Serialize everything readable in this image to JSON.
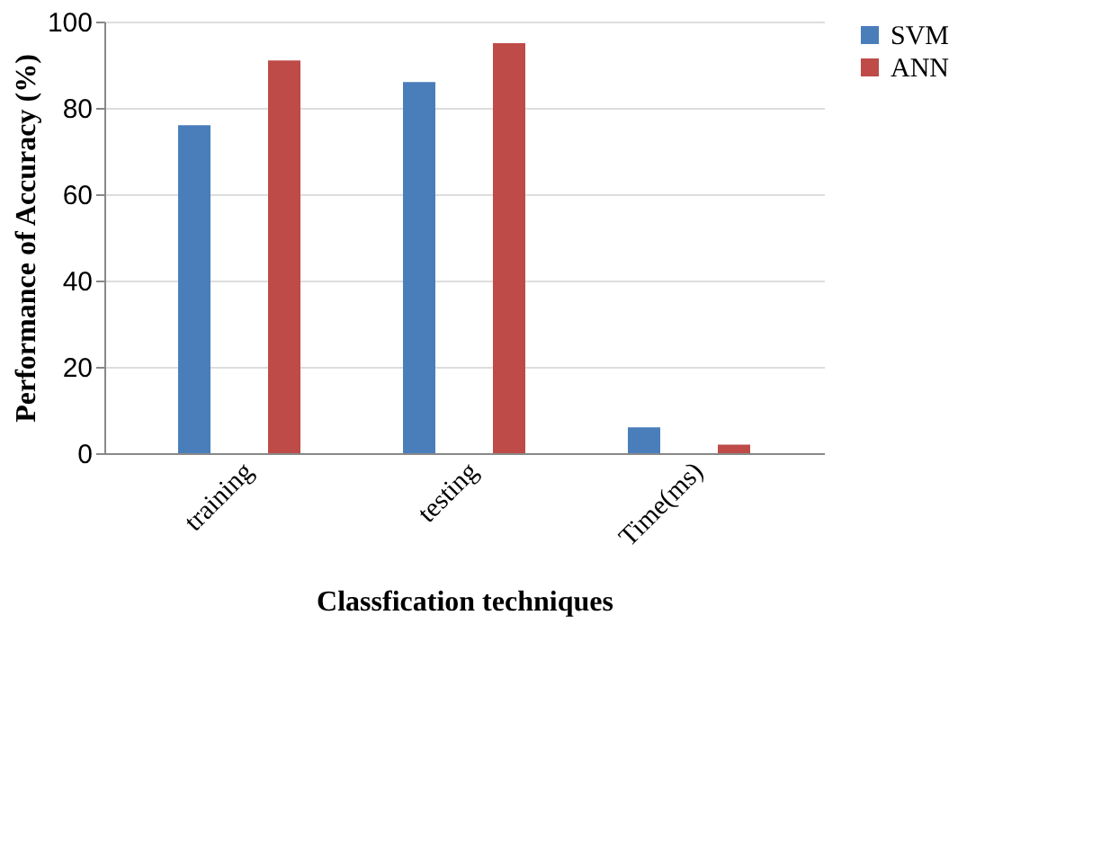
{
  "chart_data": {
    "type": "bar",
    "xlabel": "Classfication techniques",
    "ylabel": "Performance of Accuracy (%)",
    "categories": [
      "training",
      "testing",
      "Time(ms)"
    ],
    "series": [
      {
        "name": "SVM",
        "color": "#4a7ebb",
        "values": [
          76,
          86,
          6
        ]
      },
      {
        "name": "ANN",
        "color": "#be4b48",
        "values": [
          91,
          95,
          2
        ]
      }
    ],
    "ylim": [
      0,
      100
    ],
    "yticks": [
      0,
      20,
      40,
      60,
      80,
      100
    ],
    "grid": "y",
    "legend": "right"
  }
}
